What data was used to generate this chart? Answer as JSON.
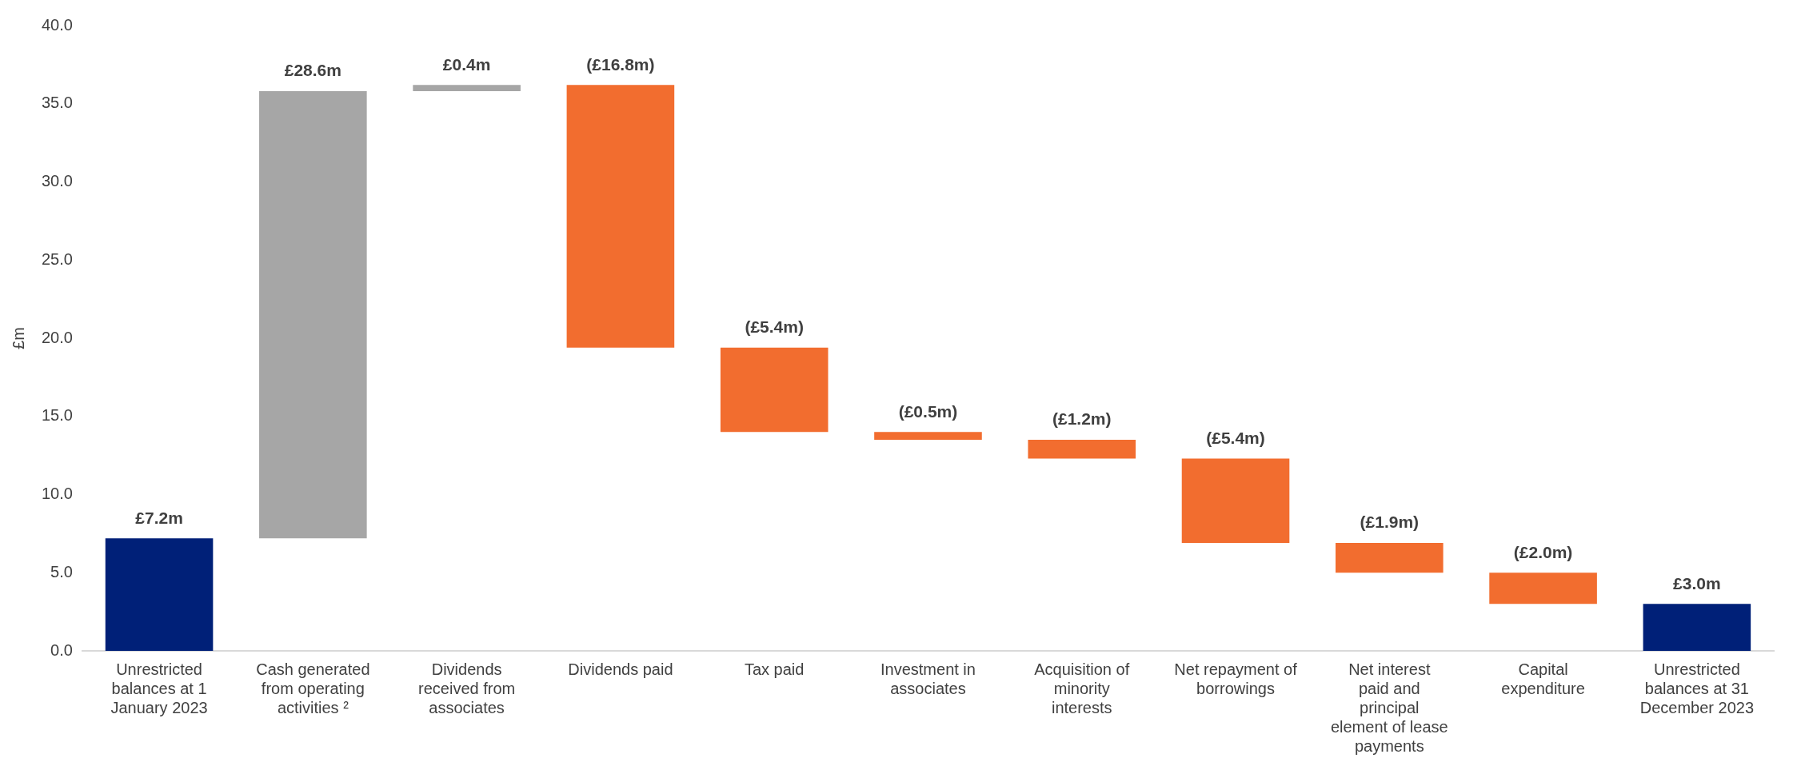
{
  "chart_data": {
    "type": "bar",
    "ylabel": "£m",
    "categories": [
      "Unrestricted balances  at 1 January 2023",
      "Cash generated from operating activities ²",
      "Dividends received from associates",
      "Dividends paid",
      "Tax paid",
      "Investment in associates",
      "Acquisition of minority interests",
      "Net repayment of borrowings",
      "Net interest paid and principal element of lease payments",
      "Capital expenditure",
      "Unrestricted balances at 31 December 2023"
    ],
    "values": [
      7.2,
      28.6,
      0.4,
      -16.8,
      -5.4,
      -0.5,
      -1.2,
      -5.4,
      -1.9,
      -2.0,
      3.0
    ],
    "base": [
      0,
      7.2,
      35.8,
      36.2,
      19.4,
      14.0,
      13.5,
      12.3,
      6.9,
      5.0,
      0
    ],
    "colors": [
      "#002078",
      "#a6a6a6",
      "#a6a6a6",
      "#f26d2f",
      "#f26d2f",
      "#f26d2f",
      "#f26d2f",
      "#f26d2f",
      "#f26d2f",
      "#f26d2f",
      "#002078"
    ],
    "value_labels": [
      "£7.2m",
      "£28.6m",
      "£0.4m",
      "(£16.8m)",
      "(£5.4m)",
      "(£0.5m)",
      "(£1.2m)",
      "(£5.4m)",
      "(£1.9m)",
      "(£2.0m)",
      "£3.0m"
    ],
    "ylim": [
      0,
      40
    ],
    "yticks": [
      {
        "value": 0,
        "label": "0.0"
      },
      {
        "value": 5,
        "label": "5.0"
      },
      {
        "value": 10,
        "label": "10.0"
      },
      {
        "value": 15,
        "label": "15.0"
      },
      {
        "value": 20,
        "label": "20.0"
      },
      {
        "value": 25,
        "label": "25.0"
      },
      {
        "value": 30,
        "label": "30.0"
      },
      {
        "value": 35,
        "label": "35.0"
      },
      {
        "value": 40,
        "label": "40.0"
      }
    ],
    "grid": false,
    "legend": false
  }
}
